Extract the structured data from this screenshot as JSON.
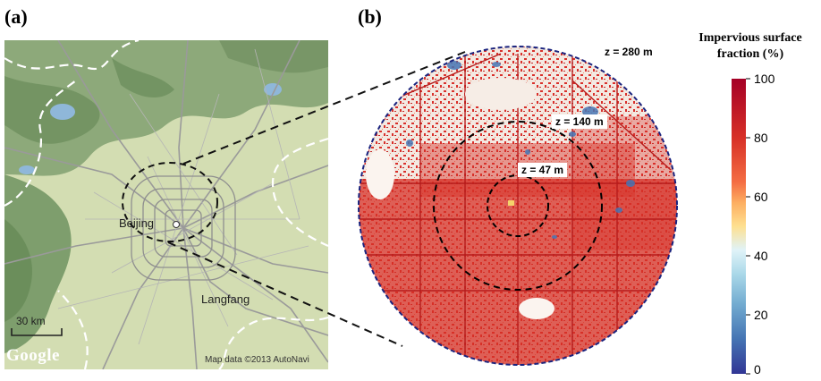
{
  "panels": {
    "a_label": "(a)",
    "b_label": "(b)"
  },
  "map": {
    "city_label": "Beijing",
    "secondary_city_label": "Langfang",
    "scale_label": "30 km",
    "provider_logo": "Google",
    "attribution": "Map data ©2013 AutoNavi"
  },
  "rings": [
    {
      "label": "z = 280 m"
    },
    {
      "label": "z = 140 m"
    },
    {
      "label": "z = 47 m"
    }
  ],
  "colorbar": {
    "title_line1": "Impervious surface",
    "title_line2": "fraction (%)",
    "ticks": [
      "100",
      "80",
      "60",
      "40",
      "20",
      "0"
    ],
    "colors": [
      "#a50026",
      "#d73027",
      "#f46d43",
      "#fdae61",
      "#fee090",
      "#e0f3f8",
      "#abd9e9",
      "#74add1",
      "#4575b4",
      "#313695"
    ]
  }
}
